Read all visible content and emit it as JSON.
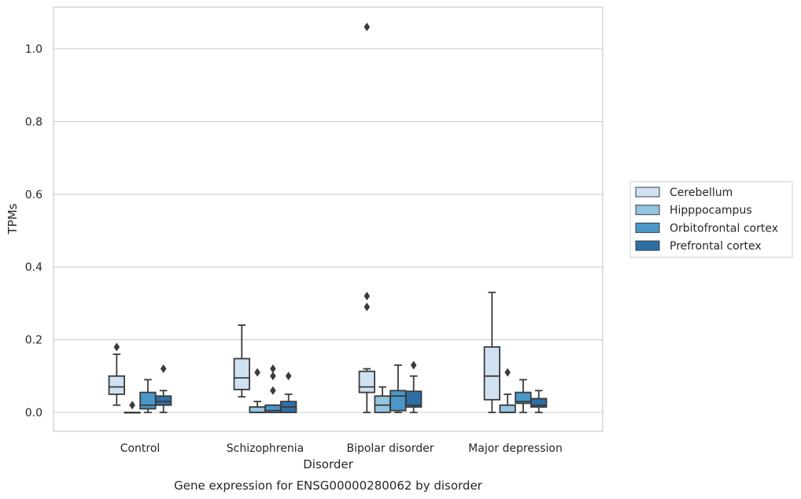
{
  "chart_data": {
    "type": "box",
    "xlabel": "Disorder",
    "ylabel": "TPMs",
    "caption": "Gene expression for ENSG00000280062 by disorder",
    "ylim": [
      -0.05,
      1.12
    ],
    "yticks": [
      "0.0",
      "0.2",
      "0.4",
      "0.6",
      "0.8",
      "1.0"
    ],
    "grid": "horizontal",
    "legend_position": "right",
    "categories": [
      "Control",
      "Schizophrenia",
      "Bipolar disorder",
      "Major depression"
    ],
    "series": [
      {
        "name": "Cerebellum",
        "color": "#d0e1f2",
        "boxes": [
          {
            "whislo": 0.02,
            "q1": 0.05,
            "med": 0.07,
            "q3": 0.1,
            "whishi": 0.16,
            "fliers": [
              0.18
            ]
          },
          {
            "whislo": 0.043,
            "q1": 0.063,
            "med": 0.095,
            "q3": 0.148,
            "whishi": 0.24,
            "fliers": []
          },
          {
            "whislo": 0.0,
            "q1": 0.055,
            "med": 0.07,
            "q3": 0.113,
            "whishi": 0.12,
            "fliers": [
              0.29,
              0.32,
              1.06
            ]
          },
          {
            "whislo": 0.0,
            "q1": 0.035,
            "med": 0.1,
            "q3": 0.18,
            "whishi": 0.33,
            "fliers": []
          }
        ]
      },
      {
        "name": "Hipppocampus",
        "color": "#94c4df",
        "boxes": [
          {
            "whislo": 0.0,
            "q1": 0.0,
            "med": 0.0,
            "q3": 0.0,
            "whishi": 0.0,
            "fliers": [
              0.02
            ]
          },
          {
            "whislo": 0.0,
            "q1": 0.0,
            "med": 0.0,
            "q3": 0.015,
            "whishi": 0.03,
            "fliers": [
              0.11
            ]
          },
          {
            "whislo": 0.0,
            "q1": 0.0,
            "med": 0.02,
            "q3": 0.045,
            "whishi": 0.07,
            "fliers": []
          },
          {
            "whislo": 0.0,
            "q1": 0.0,
            "med": 0.0,
            "q3": 0.02,
            "whishi": 0.05,
            "fliers": [
              0.11
            ]
          }
        ]
      },
      {
        "name": "Orbitofrontal cortex",
        "color": "#4a98c9",
        "boxes": [
          {
            "whislo": 0.0,
            "q1": 0.01,
            "med": 0.02,
            "q3": 0.055,
            "whishi": 0.09,
            "fliers": []
          },
          {
            "whislo": 0.0,
            "q1": 0.0,
            "med": 0.005,
            "q3": 0.02,
            "whishi": 0.02,
            "fliers": [
              0.06,
              0.1,
              0.12
            ]
          },
          {
            "whislo": 0.0,
            "q1": 0.005,
            "med": 0.045,
            "q3": 0.06,
            "whishi": 0.13,
            "fliers": []
          },
          {
            "whislo": 0.0,
            "q1": 0.025,
            "med": 0.03,
            "q3": 0.055,
            "whishi": 0.09,
            "fliers": []
          }
        ]
      },
      {
        "name": "Prefrontal cortex",
        "color": "#2e6fa7",
        "boxes": [
          {
            "whislo": 0.0,
            "q1": 0.02,
            "med": 0.03,
            "q3": 0.045,
            "whishi": 0.06,
            "fliers": [
              0.12
            ]
          },
          {
            "whislo": 0.0,
            "q1": 0.0,
            "med": 0.015,
            "q3": 0.03,
            "whishi": 0.05,
            "fliers": [
              0.1
            ]
          },
          {
            "whislo": 0.0,
            "q1": 0.015,
            "med": 0.02,
            "q3": 0.058,
            "whishi": 0.1,
            "fliers": [
              0.13
            ]
          },
          {
            "whislo": 0.0,
            "q1": 0.015,
            "med": 0.02,
            "q3": 0.038,
            "whishi": 0.06,
            "fliers": []
          }
        ]
      }
    ]
  }
}
